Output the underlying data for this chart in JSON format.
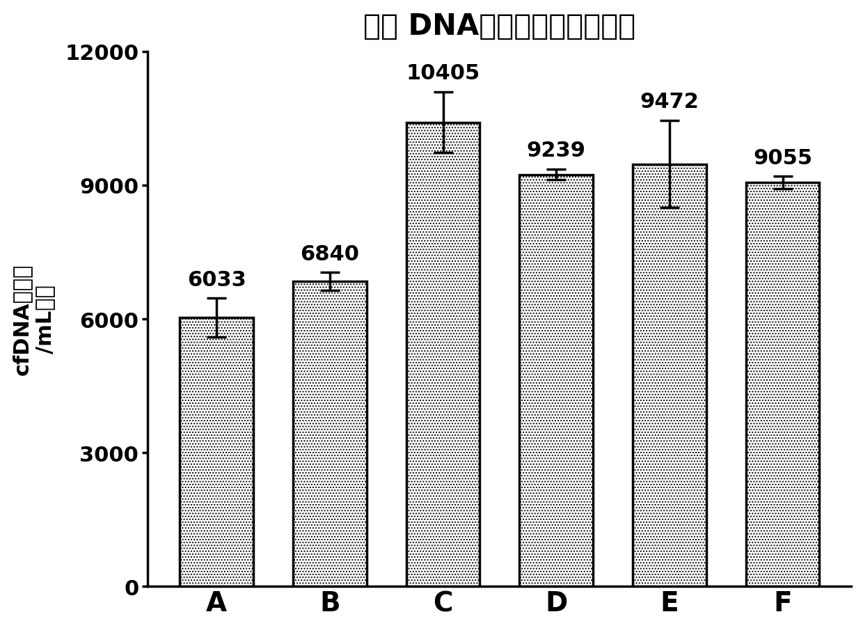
{
  "title": "血浆 DNA提取试剂盒性能比较",
  "categories": [
    "A",
    "B",
    "C",
    "D",
    "E",
    "F"
  ],
  "values": [
    6033,
    6840,
    10405,
    9239,
    9472,
    9055
  ],
  "errors": [
    430,
    200,
    680,
    120,
    980,
    140
  ],
  "bar_facecolor": "#ffffff",
  "bar_edgecolor": "#000000",
  "ylabel_line1": "cfDNA拷贝数",
  "ylabel_line2": "/mL血浆",
  "ylim": [
    0,
    12000
  ],
  "yticks": [
    0,
    3000,
    6000,
    9000,
    12000
  ],
  "value_labels": [
    "6033",
    "6840",
    "10405",
    "9239",
    "9472",
    "9055"
  ],
  "background_color": "#ffffff",
  "hatch": "....",
  "title_fontsize": 30,
  "label_fontsize": 22,
  "tick_fontsize": 22,
  "value_label_fontsize": 22,
  "bar_width": 0.65,
  "cat_fontsize": 28
}
